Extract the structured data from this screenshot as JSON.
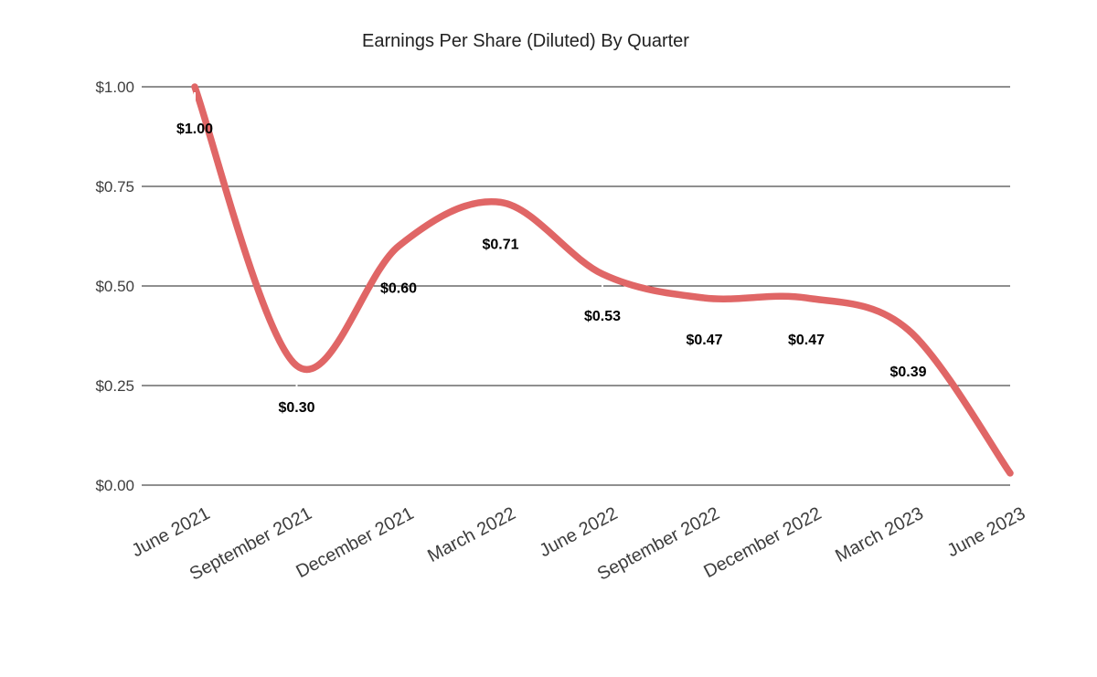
{
  "chart_data": {
    "type": "line",
    "title": "Earnings Per Share (Diluted) By Quarter",
    "categories": [
      "June 2021",
      "September 2021",
      "December 2021",
      "March 2022",
      "June 2022",
      "September 2022",
      "December 2022",
      "March 2023",
      "June 2023"
    ],
    "values": [
      1.0,
      0.3,
      0.6,
      0.71,
      0.53,
      0.47,
      0.47,
      0.39,
      0.03
    ],
    "data_labels": [
      "$1.00",
      "$0.30",
      "$0.60",
      "$0.71",
      "$0.53",
      "$0.47",
      "$0.47",
      "$0.39",
      ""
    ],
    "y_ticks": [
      "$1.00",
      "$0.75",
      "$0.50",
      "$0.25",
      "$0.00"
    ],
    "y_tick_values": [
      1.0,
      0.75,
      0.5,
      0.25,
      0.0
    ],
    "ylim": [
      0,
      1.0
    ],
    "xlabel": "",
    "ylabel": "",
    "grid": "horizontal",
    "legend": "none",
    "smooth": true,
    "line_color": "#e06666",
    "label_color": "#000000",
    "axis_text_color": "#3d3d3d",
    "grid_color": "#1f1f1f",
    "title_color": "#212121",
    "callout_color": "#ffffff",
    "background_color": "#ffffff"
  }
}
